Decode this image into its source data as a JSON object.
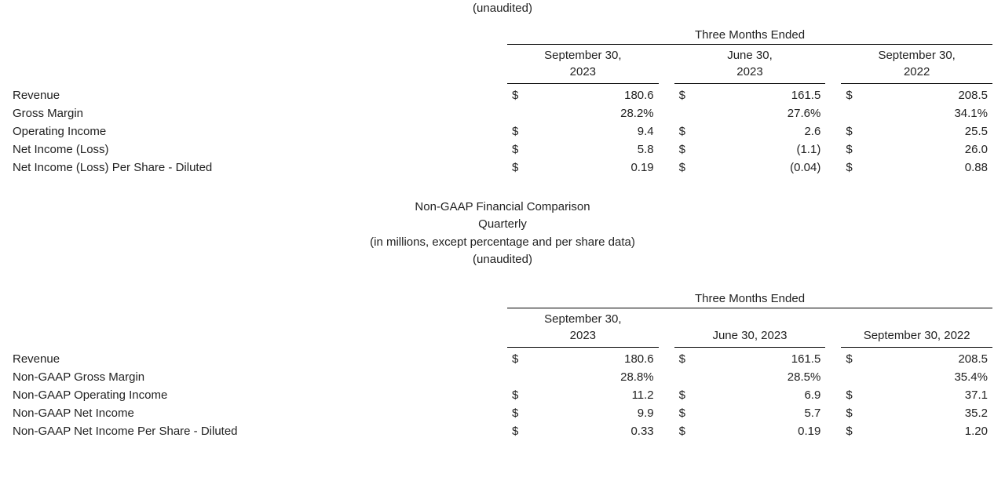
{
  "top_subtitle": "(unaudited)",
  "super_header": "Three Months Ended",
  "periods": {
    "p1_line1": "September 30,",
    "p1_line2": "2023",
    "p2_line1": "June 30,",
    "p2_line2": "2023",
    "p3_line1": "September 30,",
    "p3_line2": "2022"
  },
  "gaap_rows": [
    {
      "label": "Revenue",
      "s1": "$",
      "v1": "180.6",
      "s2": "$",
      "v2": "161.5",
      "s3": "$",
      "v3": "208.5"
    },
    {
      "label": "Gross Margin",
      "s1": "",
      "v1": "28.2%",
      "s2": "",
      "v2": "27.6%",
      "s3": "",
      "v3": "34.1%"
    },
    {
      "label": "Operating Income",
      "s1": "$",
      "v1": "9.4",
      "s2": "$",
      "v2": "2.6",
      "s3": "$",
      "v3": "25.5"
    },
    {
      "label": "Net Income (Loss)",
      "s1": "$",
      "v1": "5.8",
      "s2": "$",
      "v2": "(1.1)",
      "s3": "$",
      "v3": "26.0"
    },
    {
      "label": "Net Income (Loss) Per Share - Diluted",
      "s1": "$",
      "v1": "0.19",
      "s2": "$",
      "v2": "(0.04)",
      "s3": "$",
      "v3": "0.88"
    }
  ],
  "section2": {
    "line1": "Non-GAAP Financial Comparison",
    "line2": "Quarterly",
    "line3": "(in millions, except percentage and per share data)",
    "line4": "(unaudited)"
  },
  "periods2": {
    "p1_line1": "September 30,",
    "p1_line2": "2023",
    "p2": "June 30, 2023",
    "p3": "September 30, 2022"
  },
  "nongaap_rows": [
    {
      "label": "Revenue",
      "s1": "$",
      "v1": "180.6",
      "s2": "$",
      "v2": "161.5",
      "s3": "$",
      "v3": "208.5"
    },
    {
      "label": "Non-GAAP Gross Margin",
      "s1": "",
      "v1": "28.8%",
      "s2": "",
      "v2": "28.5%",
      "s3": "",
      "v3": "35.4%"
    },
    {
      "label": "Non-GAAP Operating Income",
      "s1": "$",
      "v1": "11.2",
      "s2": "$",
      "v2": "6.9",
      "s3": "$",
      "v3": "37.1"
    },
    {
      "label": "Non-GAAP Net Income",
      "s1": "$",
      "v1": "9.9",
      "s2": "$",
      "v2": "5.7",
      "s3": "$",
      "v3": "35.2"
    },
    {
      "label": "Non-GAAP Net Income Per Share - Diluted",
      "s1": "$",
      "v1": "0.33",
      "s2": "$",
      "v2": "0.19",
      "s3": "$",
      "v3": "1.20"
    }
  ]
}
